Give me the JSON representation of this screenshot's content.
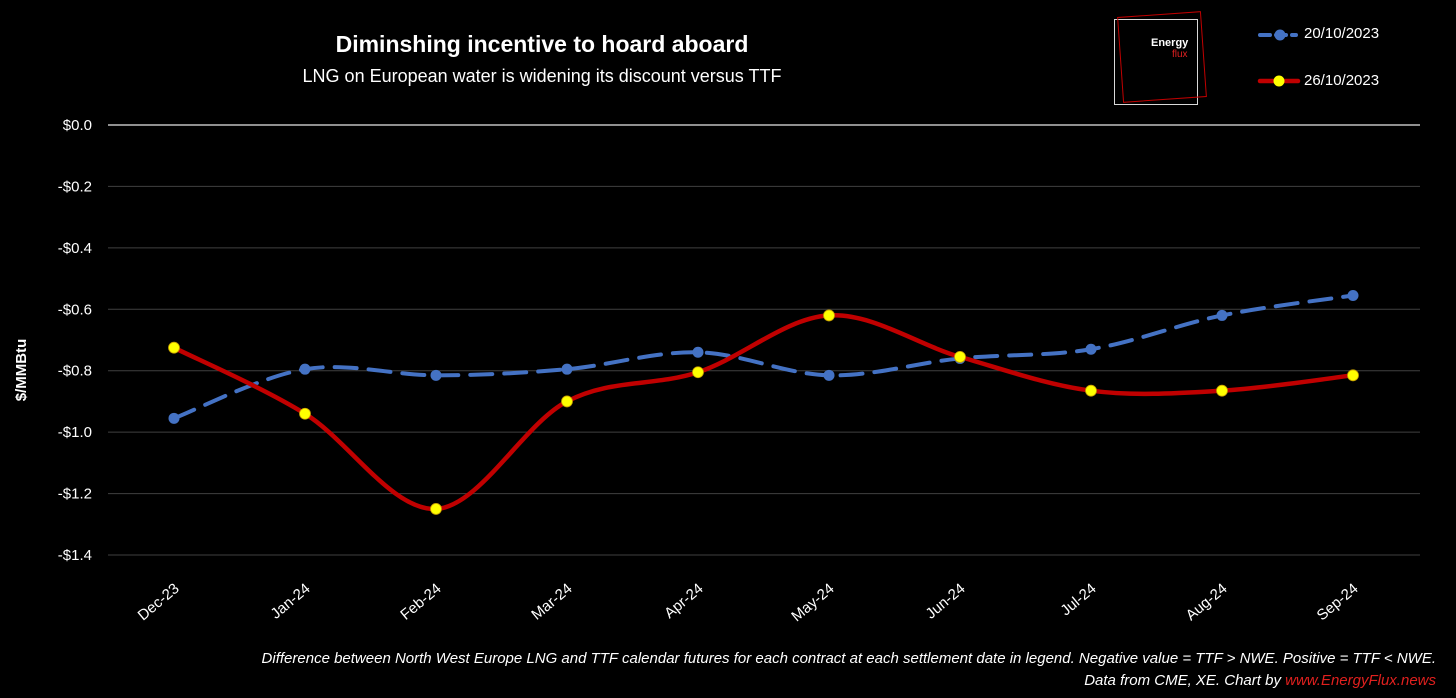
{
  "chart_data": {
    "type": "line",
    "title": "Diminshing incentive to hoard aboard",
    "subtitle": "LNG on European water is widening its discount versus TTF",
    "ylabel": "$/MMBtu",
    "xlabel": "",
    "categories": [
      "Dec-23",
      "Jan-24",
      "Feb-24",
      "Mar-24",
      "Apr-24",
      "May-24",
      "Jun-24",
      "Jul-24",
      "Aug-24",
      "Sep-24"
    ],
    "y_ticks": [
      "$0.0",
      "-$0.2",
      "-$0.4",
      "-$0.6",
      "-$0.8",
      "-$1.0",
      "-$1.2",
      "-$1.4"
    ],
    "ylim": [
      -1.4,
      0.0
    ],
    "grid": true,
    "legend_position": "top-right",
    "series": [
      {
        "name": "20/10/2023",
        "color": "#4472c4",
        "style": "dashed",
        "values": [
          -0.955,
          -0.795,
          -0.815,
          -0.795,
          -0.74,
          -0.815,
          -0.76,
          -0.73,
          -0.62,
          -0.555
        ]
      },
      {
        "name": "26/10/2023",
        "color": "#c00000",
        "marker_color": "#ffff00",
        "style": "solid-smooth",
        "values": [
          -0.725,
          -0.94,
          -1.25,
          -0.9,
          -0.805,
          -0.62,
          -0.755,
          -0.865,
          -0.865,
          -0.815
        ]
      }
    ]
  },
  "logo": {
    "line1": "Energy",
    "line2": "flux"
  },
  "footnote": {
    "line1": "Difference between North West Europe LNG and TTF calendar futures for  each contract at each settlement date in legend. Negative value = TTF > NWE. Positive = TTF < NWE.",
    "line2_prefix": "Data from CME, XE. Chart by ",
    "line2_link": "www.EnergyFlux.news"
  },
  "colors": {
    "background": "#000000",
    "grid": "#404040",
    "zero_line": "#bfbfbf",
    "text": "#ffffff",
    "brand_red": "#e0201e"
  }
}
